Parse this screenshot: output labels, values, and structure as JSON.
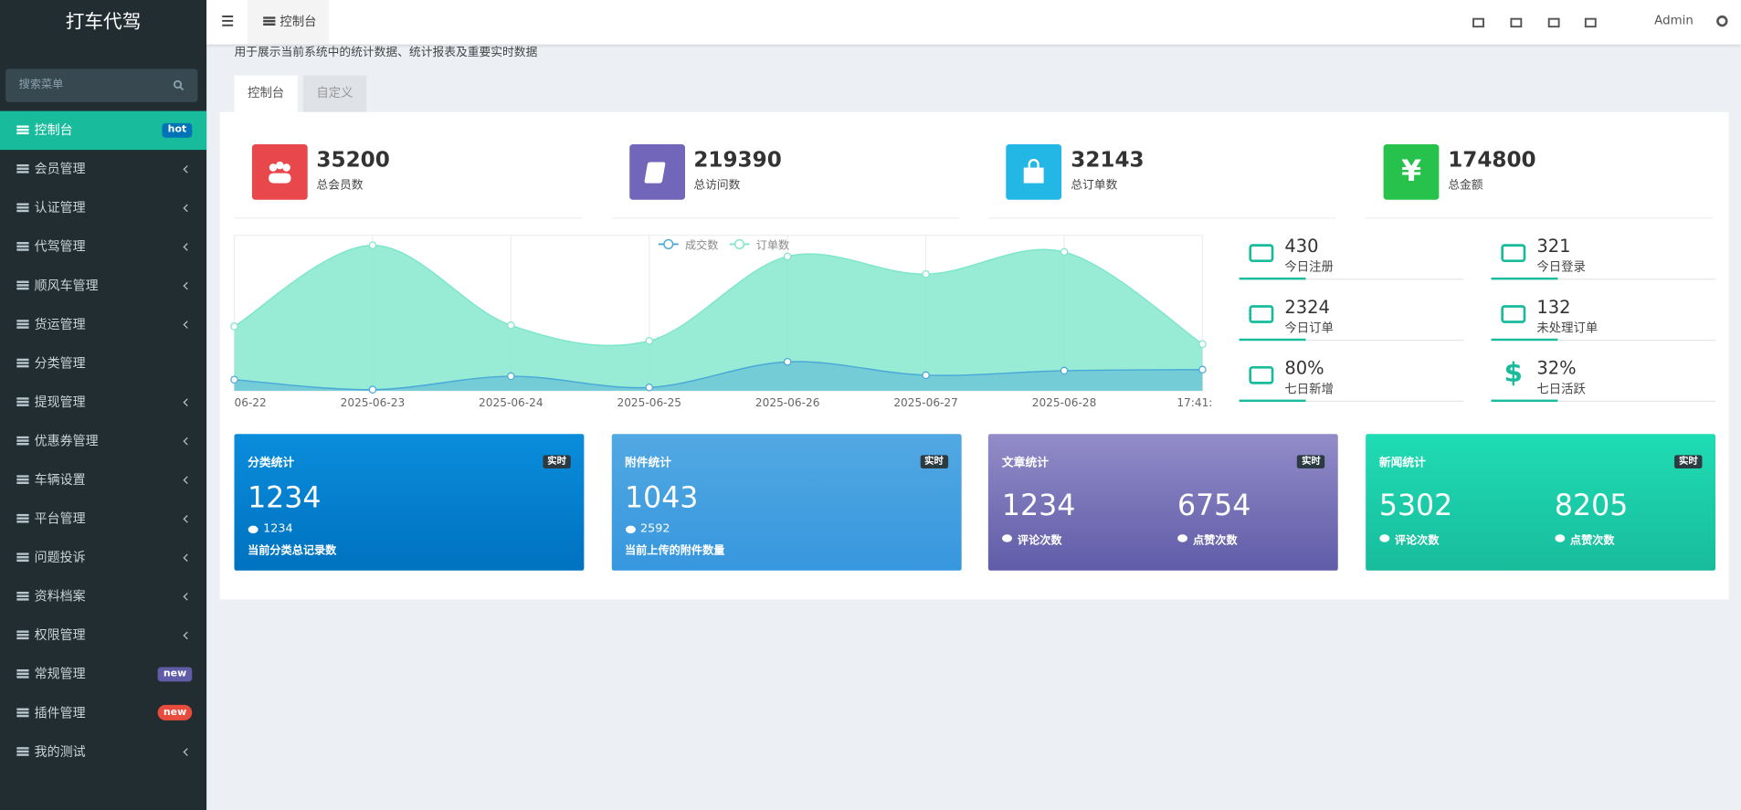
{
  "sidebar": {
    "logo": "打车代驾",
    "search_placeholder": "搜索菜单",
    "menu": [
      {
        "label": "控制台",
        "badge": "hot",
        "badge_color": "#0073b7",
        "active": true
      },
      {
        "label": "会员管理",
        "submenu": true
      },
      {
        "label": "认证管理",
        "submenu": true
      },
      {
        "label": "代驾管理",
        "submenu": true
      },
      {
        "label": "顺风车管理",
        "submenu": true
      },
      {
        "label": "货运管理",
        "submenu": true
      },
      {
        "label": "分类管理"
      },
      {
        "label": "提现管理",
        "submenu": true
      },
      {
        "label": "优惠券管理",
        "submenu": true
      },
      {
        "label": "车辆设置",
        "submenu": true
      },
      {
        "label": "平台管理",
        "submenu": true
      },
      {
        "label": "问题投诉",
        "submenu": true
      },
      {
        "label": "资料档案",
        "submenu": true
      },
      {
        "label": "权限管理",
        "submenu": true
      },
      {
        "label": "常规管理",
        "badge": "new",
        "badge_color": "#605ca8"
      },
      {
        "label": "插件管理",
        "badge": "new",
        "badge_color": "#e74c3c"
      },
      {
        "label": "我的测试",
        "submenu": true
      }
    ]
  },
  "header": {
    "tab": "控制台",
    "user": "Admin"
  },
  "page": {
    "description": "用于展示当前系统中的统计数据、统计报表及重要实时数据",
    "tabs": [
      "控制台",
      "自定义"
    ]
  },
  "stats": [
    {
      "value": "35200",
      "label": "总会员数",
      "color": "#e8474b"
    },
    {
      "value": "219390",
      "label": "总访问数",
      "color": "#7266ba"
    },
    {
      "value": "32143",
      "label": "总订单数",
      "color": "#23b7e5"
    },
    {
      "value": "174800",
      "label": "总金额",
      "color": "#27c24c",
      "icon": "¥"
    }
  ],
  "mini_stats": [
    {
      "value": "430",
      "label": "今日注册"
    },
    {
      "value": "321",
      "label": "今日登录"
    },
    {
      "value": "2324",
      "label": "今日订单"
    },
    {
      "value": "132",
      "label": "未处理订单"
    },
    {
      "value": "80%",
      "label": "七日新增"
    },
    {
      "value": "32%",
      "label": "七日活跃",
      "icon": "$"
    }
  ],
  "cards": [
    {
      "title": "分类统计",
      "badge": "实时",
      "value": "1234",
      "sub_value": "1234",
      "caption": "当前分类总记录数",
      "colors": [
        "#0a8ddc",
        "#0072bf"
      ]
    },
    {
      "title": "附件统计",
      "badge": "实时",
      "value": "1043",
      "sub_value": "2592",
      "caption": "当前上传的附件数量",
      "colors": [
        "#52a8e2",
        "#3797de"
      ]
    },
    {
      "title": "文章统计",
      "badge": "实时",
      "items": [
        {
          "value": "1234",
          "label": "评论次数"
        },
        {
          "value": "6754",
          "label": "点赞次数"
        }
      ],
      "colors": [
        "#928cc8",
        "#605ca8"
      ]
    },
    {
      "title": "新闻统计",
      "badge": "实时",
      "items": [
        {
          "value": "5302",
          "label": "评论次数"
        },
        {
          "value": "8205",
          "label": "点赞次数"
        }
      ],
      "colors": [
        "#1fdcb4",
        "#18bc9c"
      ]
    }
  ],
  "chart_data": {
    "type": "area",
    "categories": [
      "06-22",
      "2025-06-23",
      "2025-06-24",
      "2025-06-25",
      "2025-06-26",
      "2025-06-27",
      "2025-06-28",
      "17:41:"
    ],
    "series": [
      {
        "name": "成交数",
        "color": "#4aa8d8",
        "values": [
          71,
          7,
          93,
          21,
          186,
          100,
          129,
          136
        ]
      },
      {
        "name": "订单数",
        "color": "#7ee6cb",
        "values": [
          414,
          936,
          421,
          321,
          864,
          750,
          893,
          300
        ]
      }
    ],
    "ylim": [
      0,
      1000
    ],
    "grid": true,
    "legend": "top"
  }
}
